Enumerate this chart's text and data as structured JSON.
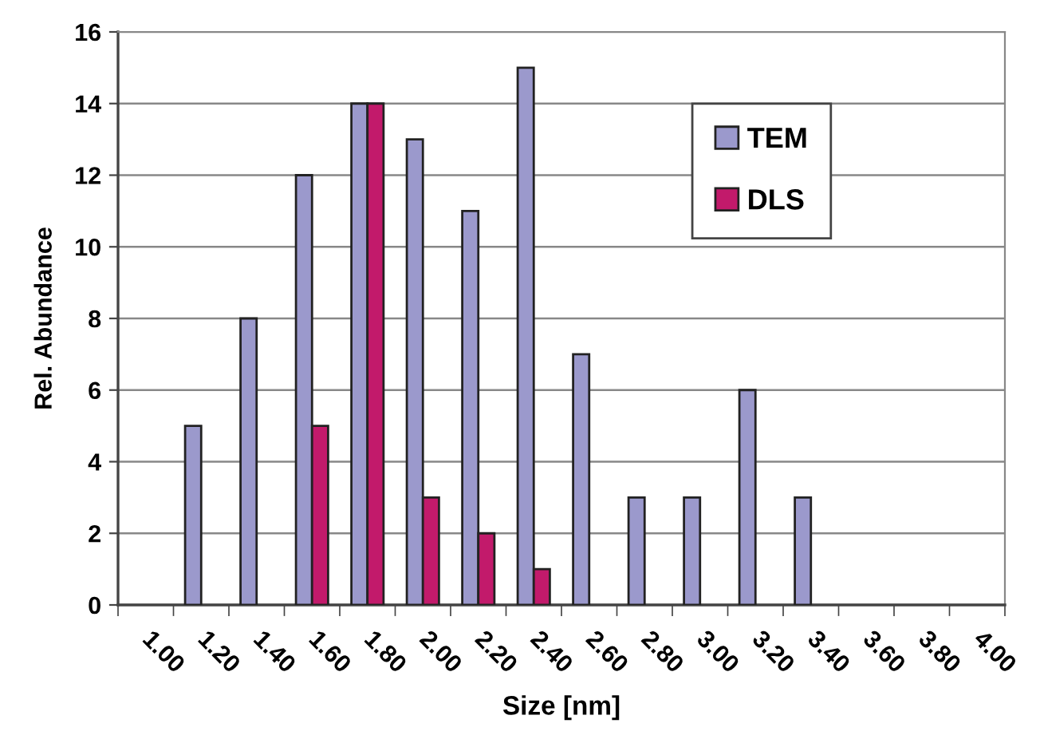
{
  "chart_data": {
    "type": "bar",
    "xlabel": "Size [nm]",
    "ylabel": "Rel. Abundance",
    "categories": [
      "1.00",
      "1.20",
      "1.40",
      "1.60",
      "1.80",
      "2.00",
      "2.20",
      "2.40",
      "2.60",
      "2.80",
      "3.00",
      "3.20",
      "3.40",
      "3.60",
      "3.80",
      "4.00"
    ],
    "series": [
      {
        "name": "TEM",
        "color": "#9b99cc",
        "values": [
          null,
          5,
          8,
          12,
          14,
          13,
          11,
          15,
          7,
          3,
          3,
          6,
          3,
          null,
          null,
          null
        ]
      },
      {
        "name": "DLS",
        "color": "#c21a6b",
        "values": [
          null,
          null,
          null,
          5,
          14,
          3,
          2,
          1,
          null,
          null,
          null,
          null,
          null,
          null,
          null,
          null
        ]
      }
    ],
    "ylim": [
      0,
      16
    ],
    "yticks": [
      0,
      2,
      4,
      6,
      8,
      10,
      12,
      14,
      16
    ],
    "grid": "y",
    "legend": "top right"
  }
}
